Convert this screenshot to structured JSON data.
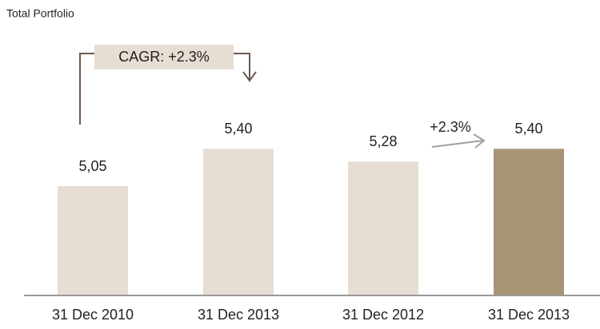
{
  "chart_data": {
    "type": "bar",
    "title": "Total Portfolio",
    "categories": [
      "31 Dec 2010",
      "31 Dec 2013",
      "31 Dec 2012",
      "31 Dec 2013"
    ],
    "values": [
      5.05,
      5.4,
      5.28,
      5.4
    ],
    "value_labels": [
      "5,05",
      "5,40",
      "5,28",
      "5,40"
    ],
    "colors": [
      "#e6ddd3",
      "#e6ddd3",
      "#e6ddd3",
      "#a89474"
    ],
    "ylim": [
      4.03,
      5.53
    ],
    "annotations": [
      "CAGR: +2.3%",
      "+2.3%"
    ]
  }
}
